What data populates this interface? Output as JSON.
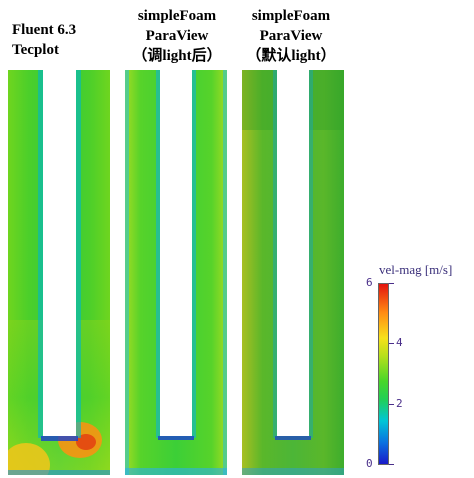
{
  "panels": [
    {
      "title_lines": [
        "Fluent 6.3",
        "Tecplot"
      ]
    },
    {
      "title_lines": [
        "simpleFoam",
        "ParaView",
        "（调light后）"
      ]
    },
    {
      "title_lines": [
        "simpleFoam",
        "ParaView",
        "（默认light）"
      ]
    }
  ],
  "colorbar": {
    "title": "vel-mag [m/s]",
    "ticks": [
      "6",
      "4",
      "2",
      "0"
    ],
    "range": [
      0,
      6
    ]
  }
}
